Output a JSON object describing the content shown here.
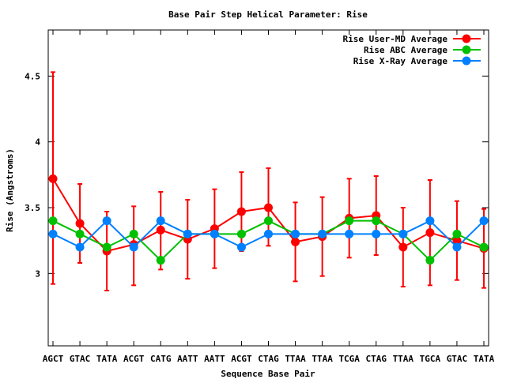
{
  "chart_data": {
    "type": "line",
    "title": "Base Pair Step Helical Parameter: Rise",
    "xlabel": "Sequence Base Pair",
    "ylabel": "Rise (Angstroms)",
    "ylim": [
      2.45,
      4.85
    ],
    "yticks": [
      3,
      3.5,
      4,
      4.5
    ],
    "ytick_labels": [
      "3",
      "3.5",
      "4",
      "4.5"
    ],
    "legend_position": "top-right",
    "categories": [
      "AGCT",
      "GTAC",
      "TATA",
      "ACGT",
      "CATG",
      "AATT",
      "AATT",
      "ACGT",
      "CTAG",
      "TTAA",
      "TTAA",
      "TCGA",
      "CTAG",
      "TTAA",
      "TGCA",
      "GTAC",
      "TATA"
    ],
    "series": [
      {
        "name": "Rise User-MD Average",
        "color": "#ff0000",
        "values": [
          3.72,
          3.38,
          3.17,
          3.22,
          3.33,
          3.26,
          3.34,
          3.47,
          3.5,
          3.24,
          3.28,
          3.42,
          3.44,
          3.2,
          3.31,
          3.25,
          3.19
        ],
        "error_low": [
          2.92,
          3.08,
          2.87,
          2.91,
          3.03,
          2.96,
          3.04,
          3.17,
          3.21,
          2.94,
          2.98,
          3.12,
          3.14,
          2.9,
          2.91,
          2.95,
          2.89
        ],
        "error_high": [
          4.53,
          3.68,
          3.47,
          3.51,
          3.62,
          3.56,
          3.64,
          3.77,
          3.8,
          3.54,
          3.58,
          3.72,
          3.74,
          3.5,
          3.71,
          3.55,
          3.49
        ]
      },
      {
        "name": "Rise ABC Average",
        "color": "#00c000",
        "values": [
          3.4,
          3.3,
          3.2,
          3.3,
          3.1,
          3.3,
          3.3,
          3.3,
          3.4,
          3.3,
          3.3,
          3.4,
          3.4,
          3.3,
          3.1,
          3.3,
          3.2
        ]
      },
      {
        "name": "Rise X-Ray Average",
        "color": "#0080ff",
        "values": [
          3.3,
          3.2,
          3.4,
          3.2,
          3.4,
          3.3,
          3.3,
          3.2,
          3.3,
          3.3,
          3.3,
          3.3,
          3.3,
          3.3,
          3.4,
          3.2,
          3.4
        ]
      }
    ]
  }
}
